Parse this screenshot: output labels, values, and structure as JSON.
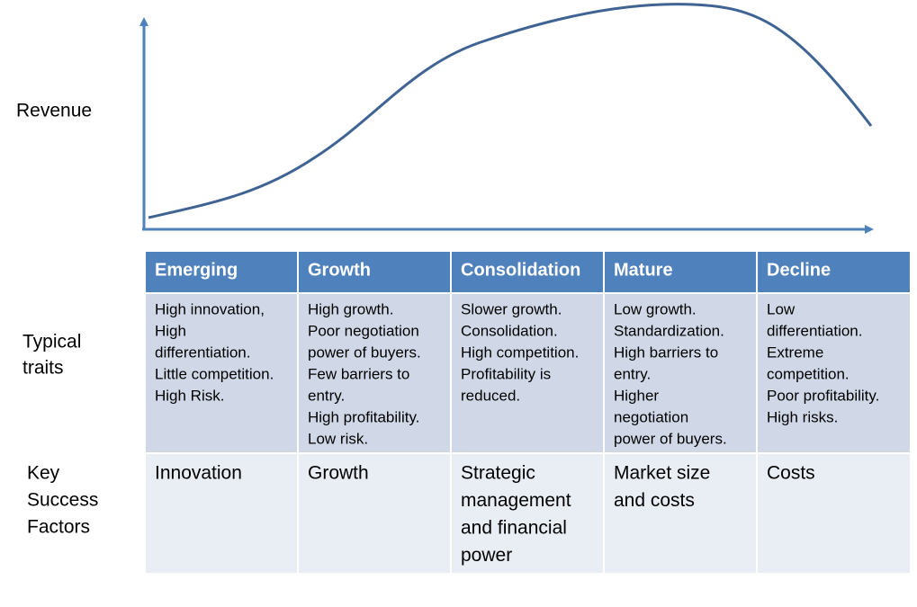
{
  "y_axis_label": "Revenue",
  "row_labels": [
    [
      "Typical",
      "traits"
    ],
    [
      "Key",
      "Success",
      "Factors"
    ]
  ],
  "columns": [
    {
      "header": "Emerging",
      "traits": [
        "High innovation,",
        "High",
        "differentiation.",
        "Little competition.",
        "High Risk."
      ],
      "success_factors": [
        "Innovation"
      ]
    },
    {
      "header": "Growth",
      "traits": [
        "High growth.",
        "Poor negotiation",
        "power of buyers.",
        "Few barriers to",
        "entry.",
        "High profitability.",
        "Low risk."
      ],
      "success_factors": [
        "Growth"
      ]
    },
    {
      "header": "Consolidation",
      "traits": [
        "Slower growth.",
        "Consolidation.",
        "High competition.",
        "Profitability is",
        "reduced."
      ],
      "success_factors": [
        "Strategic",
        "management",
        "and financial",
        "power"
      ]
    },
    {
      "header": "Mature",
      "traits": [
        "Low growth.",
        "Standardization.",
        "High barriers to",
        "entry.",
        "Higher",
        "negotiation",
        "power of buyers."
      ],
      "success_factors": [
        "Market size",
        "and costs"
      ]
    },
    {
      "header": "Decline",
      "traits": [
        "Low",
        "differentiation.",
        "Extreme",
        "competition.",
        "Poor profitability.",
        "High risks."
      ],
      "success_factors": [
        "Costs"
      ]
    }
  ]
}
